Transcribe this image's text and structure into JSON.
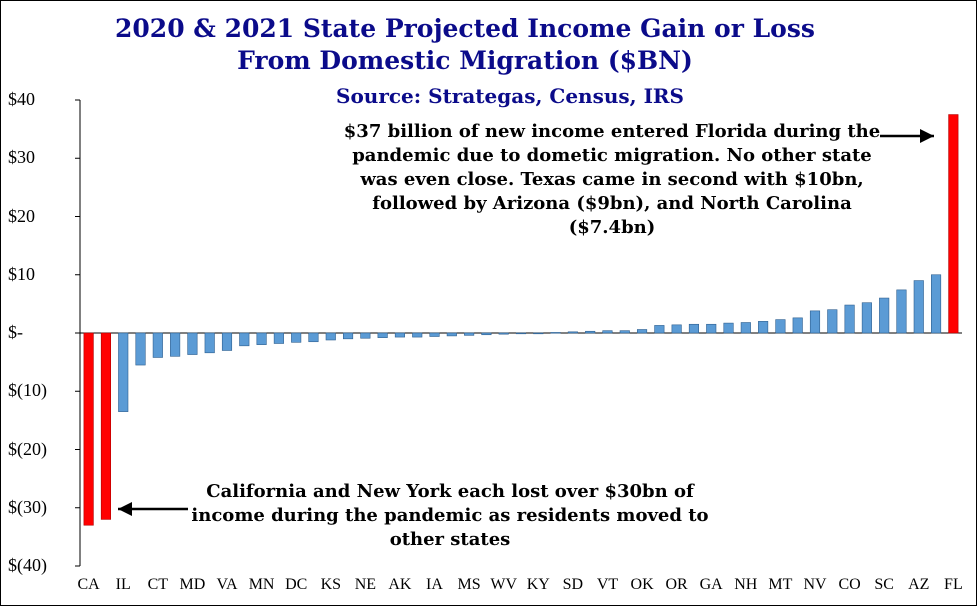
{
  "chart_data": {
    "type": "bar",
    "title": "2020 & 2021 State Projected Income Gain or Loss",
    "title_line2": "From Domestic Migration ($BN)",
    "subtitle": "Source: Strategas, Census, IRS",
    "xlabel": "",
    "ylabel": "",
    "ylim": [
      -40,
      40
    ],
    "y_ticks": [
      {
        "value": 40,
        "label": "$40"
      },
      {
        "value": 30,
        "label": "$30"
      },
      {
        "value": 20,
        "label": "$20"
      },
      {
        "value": 10,
        "label": "$10"
      },
      {
        "value": 0,
        "label": "$-"
      },
      {
        "value": -10,
        "label": "$(10)"
      },
      {
        "value": -20,
        "label": "$(20)"
      },
      {
        "value": -30,
        "label": "$(30)"
      },
      {
        "value": -40,
        "label": "$(40)"
      }
    ],
    "categories": [
      "CA",
      "",
      "IL",
      "",
      "CT",
      "",
      "MD",
      "",
      "VA",
      "",
      "MN",
      "",
      "DC",
      "",
      "KS",
      "",
      "NE",
      "",
      "AK",
      "",
      "IA",
      "",
      "MS",
      "",
      "WV",
      "",
      "KY",
      "",
      "SD",
      "",
      "VT",
      "",
      "OK",
      "",
      "OR",
      "",
      "GA",
      "",
      "NH",
      "",
      "MT",
      "",
      "NV",
      "",
      "CO",
      "",
      "SC",
      "",
      "AZ",
      "",
      "FL"
    ],
    "values": [
      -33,
      -32,
      -13.5,
      -5.5,
      -4.2,
      -4,
      -3.7,
      -3.4,
      -3,
      -2.2,
      -2,
      -1.8,
      -1.6,
      -1.5,
      -1.2,
      -1,
      -0.9,
      -0.8,
      -0.7,
      -0.7,
      -0.6,
      -0.5,
      -0.4,
      -0.3,
      -0.2,
      -0.1,
      0,
      0.1,
      0.2,
      0.3,
      0.4,
      0.4,
      0.6,
      1.3,
      1.4,
      1.5,
      1.5,
      1.7,
      1.8,
      2,
      2.3,
      2.6,
      3.8,
      4,
      4.8,
      5.2,
      6,
      7.4,
      9,
      10,
      37.5
    ],
    "highlight_indices": [
      0,
      1,
      50
    ],
    "colors": {
      "bar": "#5b9bd5",
      "bar_edge": "#2e5f8f",
      "highlight": "#ff0000",
      "title": "#0b0b8a",
      "axis": "#000000"
    },
    "annotations": {
      "fl_text": "$37 billion of new income entered Florida during the pandemic due to dometic migration. No other state was even  close. Texas came in second with $10bn, followed by Arizona ($9bn), and North Carolina ($7.4bn)",
      "ca_text": "California and New York each lost over $30bn of income during the pandemic as residents moved to other states"
    }
  }
}
